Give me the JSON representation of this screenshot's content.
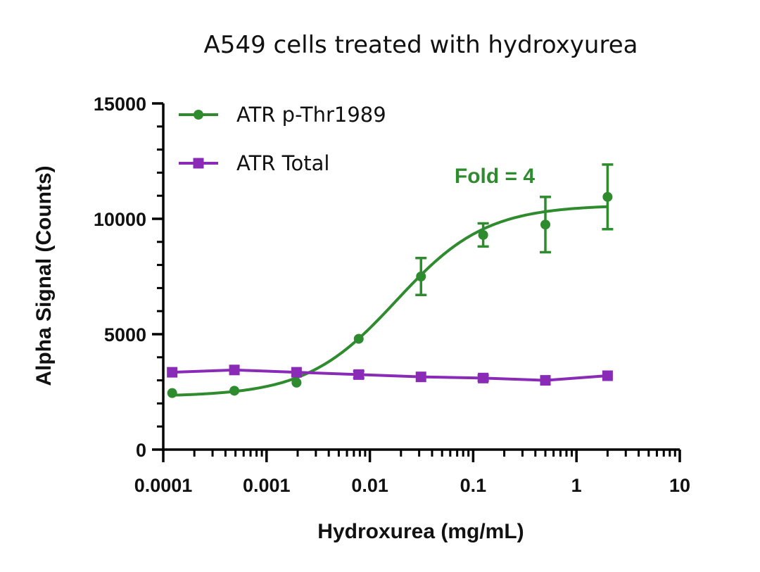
{
  "chart_data": {
    "type": "scatter",
    "title": "A549 cells treated with hydroxyurea",
    "xlabel": "Hydroxurea (mg/mL)",
    "ylabel": "Alpha Signal (Counts)",
    "x_scale": "log",
    "xlim": [
      0.0001,
      10
    ],
    "ylim": [
      0,
      15000
    ],
    "x_ticks": [
      "0.0001",
      "0.001",
      "0.01",
      "0.1",
      "1",
      "10"
    ],
    "y_ticks": [
      "0",
      "5000",
      "10000",
      "15000"
    ],
    "grid": false,
    "legend_position": "top-left",
    "annotations": [
      {
        "text": "Fold = 4",
        "x": 0.1,
        "y": 11800,
        "color": "#2e8b2e"
      }
    ],
    "series": [
      {
        "name": "ATR p-Thr1989",
        "marker": "circle",
        "color": "#2e8b2e",
        "x": [
          0.000122,
          0.000488,
          0.00195,
          0.0078,
          0.03125,
          0.125,
          0.5,
          2
        ],
        "y": [
          2450,
          2550,
          2900,
          4800,
          7500,
          9300,
          9750,
          10950
        ],
        "error": [
          0,
          0,
          0,
          0,
          800,
          500,
          1200,
          1400
        ],
        "fit": "sigmoidal",
        "fit_params": {
          "bottom": 2300,
          "top": 10600,
          "ec50": 0.018,
          "hill": 1.0
        }
      },
      {
        "name": "ATR Total",
        "marker": "square",
        "color": "#8a2bb8",
        "x": [
          0.000122,
          0.000488,
          0.00195,
          0.0078,
          0.03125,
          0.125,
          0.5,
          2
        ],
        "y": [
          3350,
          3450,
          3350,
          3250,
          3150,
          3100,
          3000,
          3200
        ],
        "error": [
          0,
          0,
          0,
          150,
          0,
          120,
          0,
          0
        ],
        "fit": "line"
      }
    ]
  }
}
